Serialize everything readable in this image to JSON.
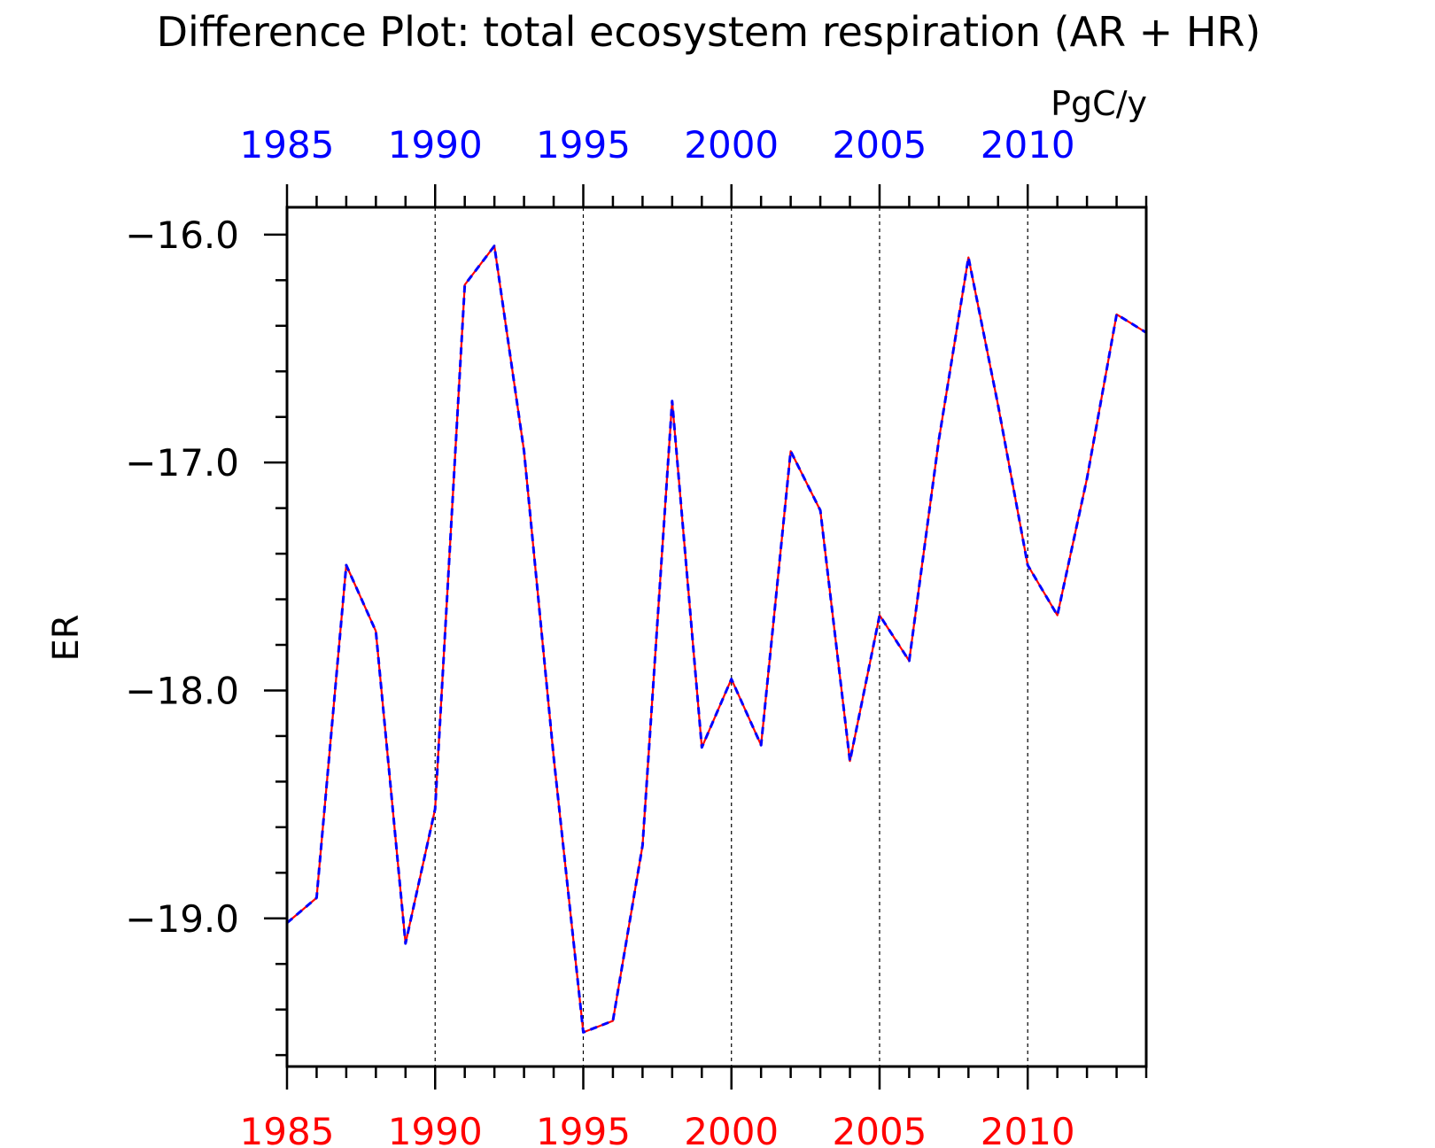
{
  "chart_data": {
    "type": "line",
    "title": "Difference Plot: total ecosystem respiration (AR + HR)",
    "units": "PgC/y",
    "ylabel": "ER",
    "xlim": [
      1985,
      2014
    ],
    "ylim": [
      -19.65,
      -15.88
    ],
    "grid": "vertical dashed lines at major x ticks",
    "x_major_ticks": [
      1985,
      1990,
      1995,
      2000,
      2005,
      2010
    ],
    "x_tick_labels": [
      "1985",
      "1990",
      "1995",
      "2000",
      "2005",
      "2010"
    ],
    "y_major_ticks": [
      -19.0,
      -18.0,
      -17.0,
      -16.0
    ],
    "y_tick_labels": [
      "−19.0",
      "−18.0",
      "−17.0",
      "−16.0"
    ],
    "x_top_label_color": "#0000ff",
    "x_bottom_label_color": "#ff0000",
    "x": [
      1985,
      1986,
      1987,
      1988,
      1989,
      1990,
      1991,
      1992,
      1993,
      1994,
      1995,
      1996,
      1997,
      1998,
      1999,
      2000,
      2001,
      2002,
      2003,
      2004,
      2005,
      2006,
      2007,
      2008,
      2009,
      2010,
      2011,
      2012,
      2013,
      2014
    ],
    "series": [
      {
        "color": "#ff0000",
        "style": "solid",
        "values": [
          -19.02,
          -18.91,
          -17.45,
          -17.74,
          -19.11,
          -18.52,
          -16.22,
          -16.05,
          -16.95,
          -18.29,
          -19.5,
          -19.45,
          -18.68,
          -16.73,
          -18.25,
          -17.95,
          -18.24,
          -16.95,
          -17.21,
          -18.31,
          -17.67,
          -17.87,
          -16.9,
          -16.1,
          -16.75,
          -17.45,
          -17.67,
          -17.07,
          -16.35,
          -16.43
        ]
      },
      {
        "color": "#0000ff",
        "style": "dashed",
        "values": [
          -19.02,
          -18.91,
          -17.45,
          -17.74,
          -19.11,
          -18.52,
          -16.22,
          -16.05,
          -16.95,
          -18.29,
          -19.5,
          -19.45,
          -18.68,
          -16.73,
          -18.25,
          -17.95,
          -18.24,
          -16.95,
          -17.21,
          -18.31,
          -17.67,
          -17.87,
          -16.9,
          -16.1,
          -16.75,
          -17.45,
          -17.67,
          -17.07,
          -16.35,
          -16.43
        ]
      }
    ]
  }
}
